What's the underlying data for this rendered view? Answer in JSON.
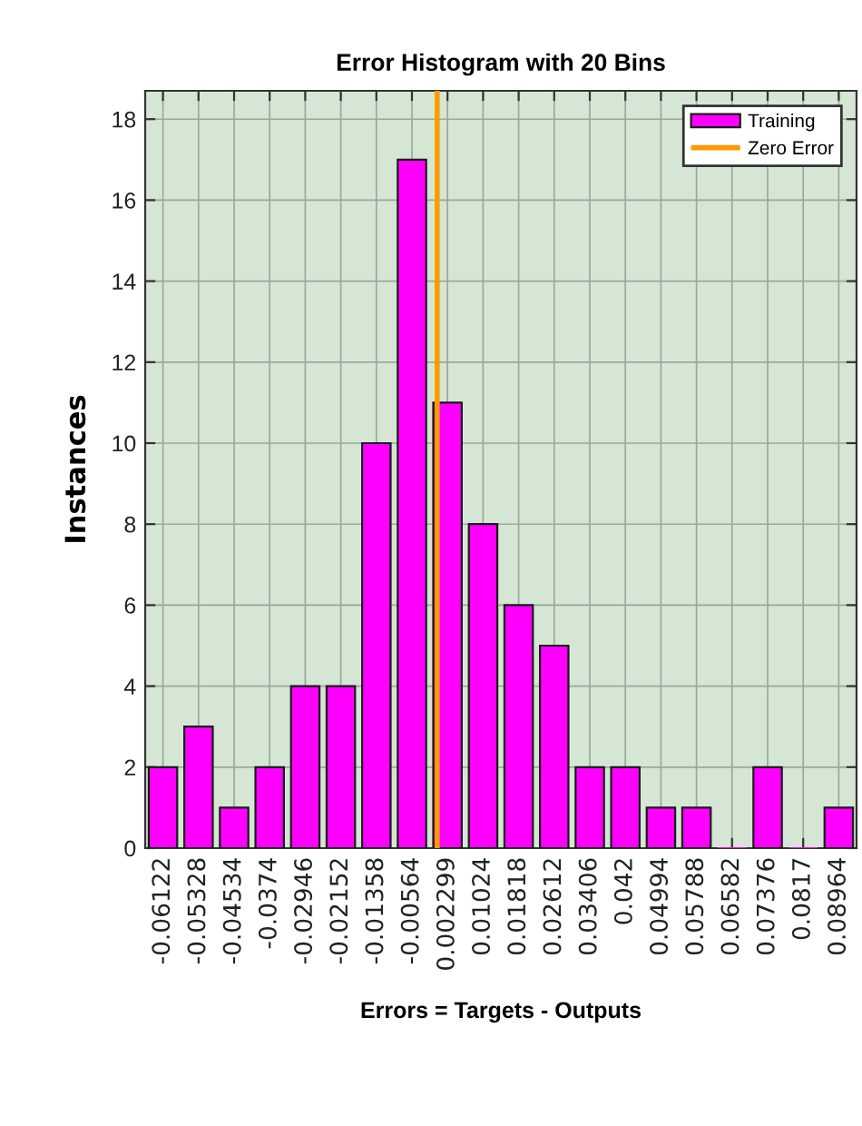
{
  "chart_data": {
    "type": "bar",
    "title": "Error Histogram with 20 Bins",
    "xlabel": "Errors = Targets - Outputs",
    "ylabel": "Instances",
    "x": [
      -0.06122,
      -0.05328,
      -0.04534,
      -0.0374,
      -0.02946,
      -0.02152,
      -0.01358,
      -0.00564,
      0.002299,
      0.01024,
      0.01818,
      0.02612,
      0.03406,
      0.042,
      0.04994,
      0.05788,
      0.06582,
      0.07376,
      0.0817,
      0.08964
    ],
    "series": [
      {
        "name": "Training",
        "color": "#ff00ff",
        "values": [
          2,
          3,
          1,
          2,
          4,
          4,
          10,
          17,
          11,
          8,
          6,
          5,
          2,
          2,
          1,
          1,
          0,
          2,
          0,
          1
        ]
      },
      {
        "type": "line",
        "name": "Zero Error",
        "color": "#ff9900",
        "x": [
          0,
          0
        ],
        "values": [
          0,
          18.7
        ]
      }
    ],
    "xlim": [
      -0.06519,
      0.09361
    ],
    "xticks": [
      -0.06122,
      -0.05328,
      -0.04534,
      -0.0374,
      -0.02946,
      -0.02152,
      -0.01358,
      -0.00564,
      0.002299,
      0.01024,
      0.01818,
      0.02612,
      0.03406,
      0.042,
      0.04994,
      0.05788,
      0.06582,
      0.07376,
      0.0817,
      0.08964
    ],
    "ylim": [
      0,
      18.7
    ],
    "yticks": [
      0,
      2,
      4,
      6,
      8,
      10,
      12,
      14,
      16,
      18
    ],
    "grid": true,
    "legend": "top right"
  }
}
